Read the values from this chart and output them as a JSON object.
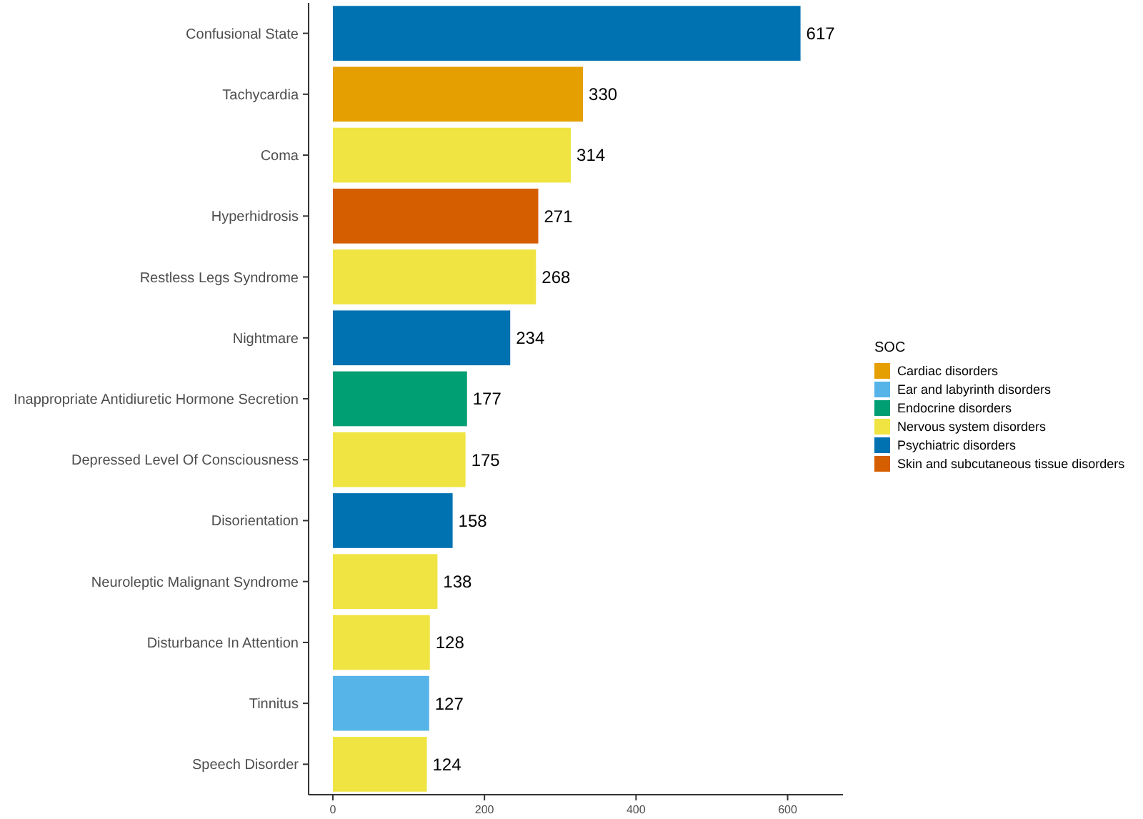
{
  "chart_data": {
    "type": "bar",
    "orientation": "horizontal",
    "legend_title": "SOC",
    "legend": "right",
    "data_labels": true,
    "grid": false,
    "categories": [
      "Confusional State",
      "Tachycardia",
      "Coma",
      "Hyperhidrosis",
      "Restless Legs Syndrome",
      "Nightmare",
      "Inappropriate Antidiuretic Hormone Secretion",
      "Depressed Level Of Consciousness",
      "Disorientation",
      "Neuroleptic Malignant Syndrome",
      "Disturbance In Attention",
      "Tinnitus",
      "Speech Disorder"
    ],
    "xlim": [
      -32,
      673
    ],
    "xticks": [
      0,
      200,
      400,
      600
    ],
    "series": [
      {
        "name": "Cardiac disorders",
        "color": "#e69f00",
        "values": [
          null,
          330,
          null,
          null,
          null,
          null,
          null,
          null,
          null,
          null,
          null,
          null,
          null
        ]
      },
      {
        "name": "Ear and labyrinth disorders",
        "color": "#56b4e9",
        "values": [
          null,
          null,
          null,
          null,
          null,
          null,
          null,
          null,
          null,
          null,
          null,
          127,
          null
        ]
      },
      {
        "name": "Endocrine disorders",
        "color": "#009e73",
        "values": [
          null,
          null,
          null,
          null,
          null,
          null,
          177,
          null,
          null,
          null,
          null,
          null,
          null
        ]
      },
      {
        "name": "Nervous system disorders",
        "color": "#f0e442",
        "values": [
          null,
          null,
          314,
          null,
          268,
          null,
          null,
          175,
          null,
          138,
          128,
          null,
          124
        ]
      },
      {
        "name": "Psychiatric disorders",
        "color": "#0072b2",
        "values": [
          617,
          null,
          null,
          null,
          null,
          234,
          null,
          null,
          158,
          null,
          null,
          null,
          null
        ]
      },
      {
        "name": "Skin and subcutaneous tissue disorders",
        "color": "#d55e00",
        "values": [
          null,
          null,
          null,
          271,
          null,
          null,
          null,
          null,
          null,
          null,
          null,
          null,
          null
        ]
      }
    ]
  }
}
